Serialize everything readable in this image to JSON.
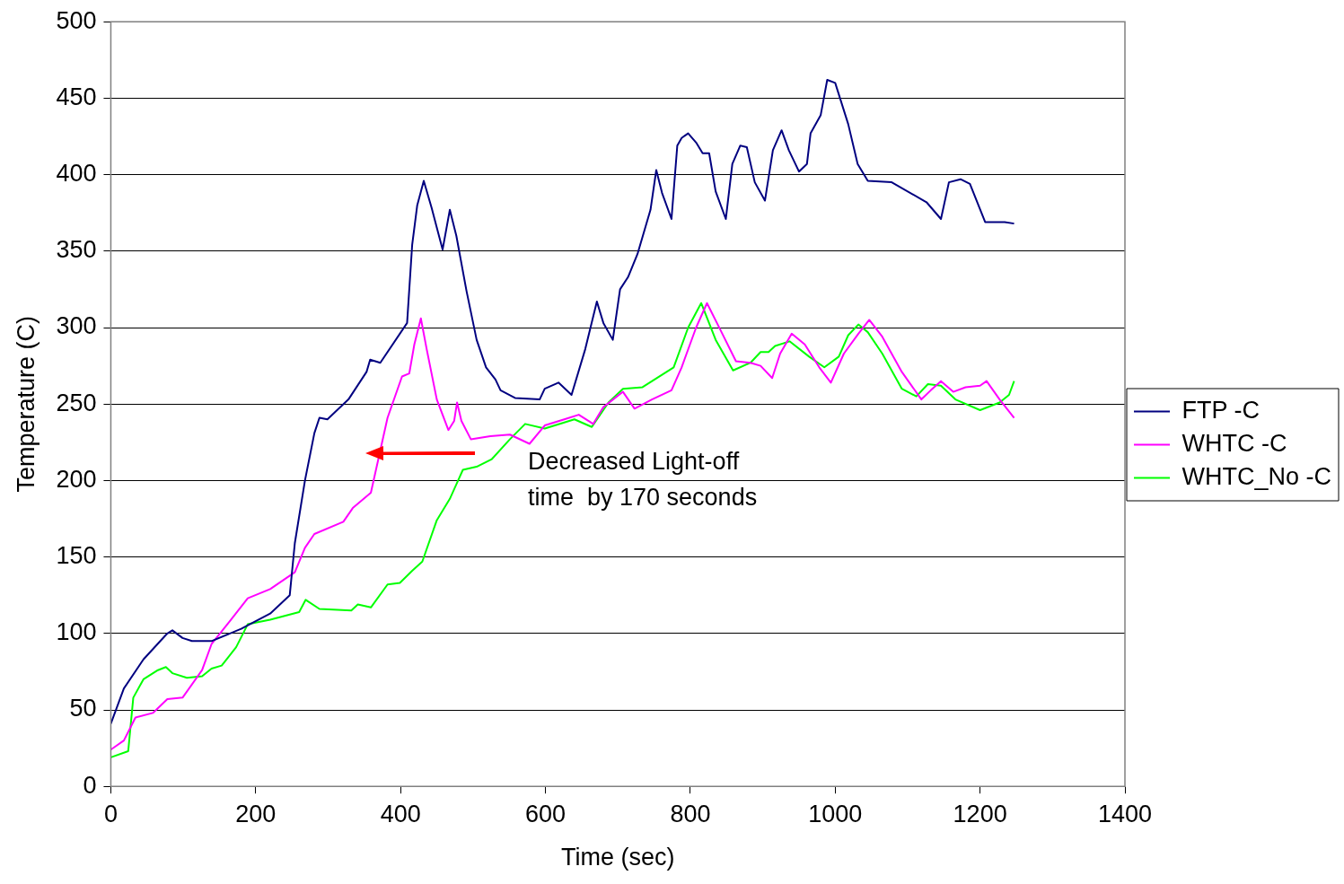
{
  "chart_data": {
    "type": "line",
    "xlabel": "Time (sec)",
    "ylabel": "Temperature (C)",
    "xlim": [
      0,
      1400
    ],
    "xticks": [
      0,
      200,
      400,
      600,
      800,
      1000,
      1200,
      1400
    ],
    "ylim": [
      0,
      500
    ],
    "yticks": [
      0,
      50,
      100,
      150,
      200,
      250,
      300,
      350,
      400,
      450,
      500
    ],
    "grid": "y",
    "legend": "right",
    "marker": "none",
    "annotations": [
      "Decreased Light-off\ntime  by 170 seconds"
    ],
    "series": [
      {
        "name": "FTP -C",
        "color": "#000080",
        "x": [
          0,
          18,
          45,
          78,
          85,
          99,
          112,
          139,
          180,
          220,
          247,
          254,
          268,
          281,
          288,
          299,
          328,
          353,
          358,
          372,
          409,
          416,
          423,
          432,
          443,
          458,
          468,
          477,
          491,
          505,
          518,
          531,
          538,
          558,
          592,
          599,
          618,
          636,
          655,
          671,
          680,
          693,
          703,
          714,
          727,
          745,
          753,
          761,
          774,
          782,
          788,
          797,
          808,
          817,
          826,
          835,
          849,
          858,
          869,
          878,
          889,
          903,
          914,
          926,
          936,
          950,
          961,
          966,
          980,
          989,
          1000,
          1018,
          1031,
          1045,
          1078,
          1126,
          1146,
          1157,
          1173,
          1186,
          1207,
          1234,
          1247
        ],
        "values": [
          41,
          64,
          83,
          100,
          102,
          97,
          95,
          95,
          103,
          113,
          125,
          159,
          200,
          231,
          241,
          240,
          253,
          271,
          279,
          277,
          303,
          354,
          380,
          396,
          378,
          351,
          377,
          360,
          324,
          292,
          274,
          266,
          259,
          254,
          253,
          260,
          264,
          256,
          286,
          317,
          303,
          292,
          325,
          333,
          348,
          377,
          403,
          388,
          371,
          419,
          424,
          427,
          421,
          414,
          414,
          389,
          371,
          407,
          419,
          418,
          395,
          383,
          416,
          429,
          416,
          402,
          407,
          427,
          439,
          462,
          460,
          433,
          407,
          396,
          395,
          382,
          371,
          395,
          397,
          394,
          369,
          369,
          368
        ]
      },
      {
        "name": "WHTC -C",
        "color": "#ff00ff",
        "x": [
          0,
          18,
          34,
          58,
          78,
          99,
          126,
          139,
          166,
          189,
          220,
          254,
          268,
          281,
          321,
          334,
          359,
          382,
          402,
          412,
          419,
          428,
          436,
          450,
          466,
          474,
          478,
          484,
          497,
          524,
          551,
          578,
          599,
          626,
          646,
          666,
          680,
          707,
          723,
          747,
          774,
          788,
          808,
          823,
          842,
          863,
          883,
          897,
          913,
          924,
          940,
          958,
          978,
          994,
          1012,
          1032,
          1047,
          1065,
          1092,
          1119,
          1132,
          1146,
          1163,
          1180,
          1200,
          1209,
          1227,
          1247
        ],
        "values": [
          24,
          30,
          45,
          48,
          57,
          58,
          76,
          93,
          109,
          123,
          129,
          140,
          156,
          165,
          173,
          182,
          192,
          241,
          268,
          270,
          289,
          306,
          286,
          253,
          233,
          239,
          251,
          239,
          227,
          229,
          230,
          224,
          236,
          240,
          243,
          237,
          248,
          258,
          247,
          253,
          259,
          274,
          300,
          316,
          298,
          278,
          277,
          275,
          267,
          283,
          296,
          289,
          274,
          264,
          283,
          296,
          305,
          294,
          271,
          253,
          259,
          265,
          258,
          261,
          262,
          265,
          253,
          241
        ]
      },
      {
        "name": "WHTC_No -C",
        "color": "#00ff00",
        "x": [
          0,
          24,
          31,
          45,
          65,
          76,
          85,
          105,
          126,
          139,
          153,
          173,
          189,
          220,
          260,
          269,
          288,
          332,
          341,
          359,
          382,
          399,
          416,
          430,
          450,
          468,
          486,
          505,
          526,
          551,
          572,
          599,
          640,
          664,
          687,
          707,
          734,
          777,
          797,
          815,
          835,
          859,
          883,
          897,
          908,
          917,
          937,
          964,
          985,
          1005,
          1018,
          1032,
          1045,
          1065,
          1092,
          1112,
          1128,
          1146,
          1166,
          1200,
          1227,
          1240,
          1247
        ],
        "values": [
          19,
          23,
          58,
          70,
          76,
          78,
          74,
          71,
          72,
          77,
          79,
          91,
          106,
          109,
          114,
          122,
          116,
          115,
          119,
          117,
          132,
          133,
          141,
          147,
          174,
          188,
          207,
          209,
          214,
          227,
          237,
          234,
          240,
          235,
          251,
          260,
          261,
          274,
          300,
          316,
          292,
          272,
          277,
          284,
          284,
          288,
          291,
          281,
          274,
          281,
          295,
          302,
          297,
          283,
          260,
          255,
          263,
          262,
          253,
          246,
          251,
          256,
          265
        ]
      }
    ]
  }
}
